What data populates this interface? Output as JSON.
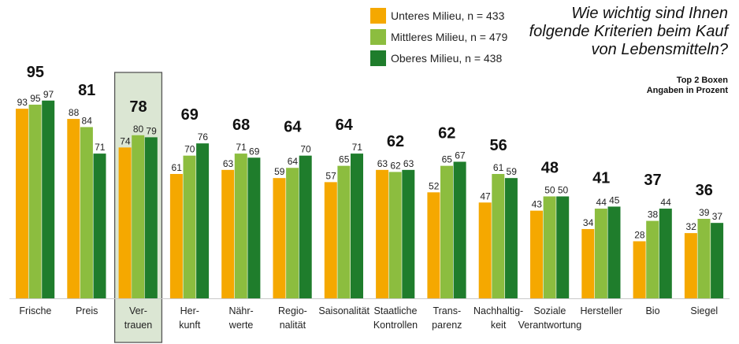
{
  "title": "Wie wichtig sind Ihnen folgende Kriterien beim Kauf von Lebensmitteln?",
  "note": {
    "line1": "Top 2 Boxen",
    "line2": "Angaben in Prozent"
  },
  "colors": {
    "unteres": "#f5a800",
    "mittleres": "#8cbd3f",
    "oberes": "#1f7d2c",
    "highlight_fill": "#dbe6d3",
    "highlight_border": "#555555"
  },
  "chart_data": {
    "type": "bar",
    "categories": [
      [
        "Frische"
      ],
      [
        "Preis"
      ],
      [
        "Ver-",
        "trauen"
      ],
      [
        "Her-",
        "kunft"
      ],
      [
        "Nähr-",
        "werte"
      ],
      [
        "Regio-",
        "nalität"
      ],
      [
        "Saisonalität"
      ],
      [
        "Staatliche",
        "Kontrollen"
      ],
      [
        "Trans-",
        "parenz"
      ],
      [
        "Nachhaltig-",
        "keit"
      ],
      [
        "Soziale",
        "Verantwortung"
      ],
      [
        "Hersteller"
      ],
      [
        "Bio"
      ],
      [
        "Siegel"
      ]
    ],
    "totals": [
      95,
      81,
      78,
      69,
      68,
      64,
      64,
      62,
      62,
      56,
      48,
      41,
      37,
      36
    ],
    "series": [
      {
        "name": "Unteres Milieu, n = 433",
        "values": [
          93,
          88,
          74,
          61,
          63,
          59,
          57,
          63,
          52,
          47,
          43,
          34,
          28,
          32
        ]
      },
      {
        "name": "Mittleres Milieu, n = 479",
        "values": [
          95,
          84,
          80,
          70,
          71,
          64,
          65,
          62,
          65,
          61,
          50,
          44,
          38,
          39
        ]
      },
      {
        "name": "Oberes Milieu, n = 438",
        "values": [
          97,
          71,
          79,
          76,
          69,
          70,
          71,
          63,
          67,
          59,
          50,
          45,
          44,
          37
        ]
      }
    ],
    "highlighted_category": "Vertrauen",
    "ylim": [
      0,
      100
    ],
    "grid": false,
    "legend_position": "top-center"
  }
}
